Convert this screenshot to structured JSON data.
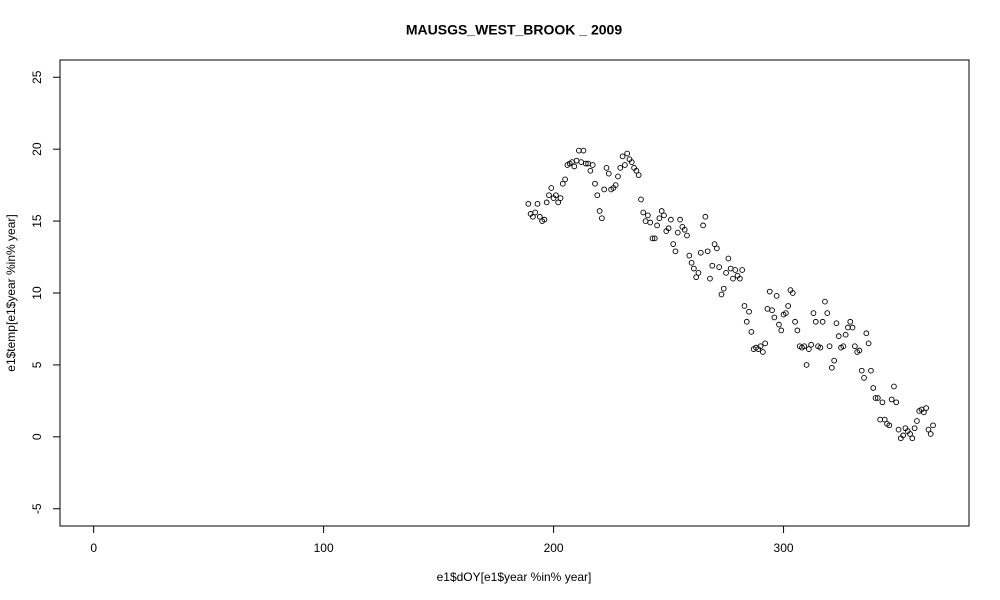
{
  "chart_data": {
    "type": "scatter",
    "title": "MAUSGS_WEST_BROOK _ 2009",
    "x_label": "e1$dOY[e1$year %in% year]",
    "y_label": "e1$temp[e1$year %in% year]",
    "xlim": [
      -14.64,
      380.64
    ],
    "ylim": [
      -6.2,
      26.2
    ],
    "xticks": [
      0,
      100,
      200,
      300
    ],
    "yticks": [
      -5,
      0,
      5,
      10,
      15,
      20,
      25
    ],
    "color": "#000000",
    "x": [
      189,
      190,
      191,
      192,
      193,
      194,
      195,
      196,
      197,
      198,
      199,
      200,
      201,
      202,
      203,
      204,
      205,
      206,
      207,
      208,
      209,
      210,
      211,
      212,
      213,
      214,
      215,
      216,
      217,
      218,
      219,
      220,
      221,
      222,
      223,
      224,
      225,
      226,
      227,
      228,
      229,
      230,
      231,
      232,
      233,
      234,
      235,
      236,
      237,
      238,
      239,
      240,
      241,
      242,
      243,
      244,
      245,
      246,
      247,
      248,
      249,
      250,
      251,
      252,
      253,
      254,
      255,
      256,
      257,
      258,
      259,
      260,
      261,
      262,
      263,
      264,
      265,
      266,
      267,
      268,
      269,
      270,
      271,
      272,
      273,
      274,
      275,
      276,
      277,
      278,
      279,
      280,
      281,
      282,
      283,
      284,
      285,
      286,
      287,
      288,
      289,
      290,
      291,
      292,
      293,
      294,
      295,
      296,
      297,
      298,
      299,
      300,
      301,
      302,
      303,
      304,
      305,
      306,
      307,
      308,
      309,
      310,
      311,
      312,
      313,
      314,
      315,
      316,
      317,
      318,
      319,
      320,
      321,
      322,
      323,
      324,
      325,
      326,
      327,
      328,
      329,
      330,
      331,
      332,
      333,
      334,
      335,
      336,
      337,
      338,
      339,
      340,
      341,
      342,
      343,
      344,
      345,
      346,
      347,
      348,
      349,
      350,
      351,
      352,
      353,
      354,
      355,
      356,
      357,
      358,
      359,
      360,
      361,
      362,
      363,
      364,
      365
    ],
    "y": [
      16.2,
      15.5,
      15.3,
      15.6,
      16.2,
      15.3,
      15.0,
      15.1,
      16.3,
      16.8,
      17.3,
      16.6,
      16.8,
      16.3,
      16.6,
      17.6,
      17.9,
      18.9,
      19.0,
      19.1,
      18.8,
      19.2,
      19.9,
      19.1,
      19.9,
      19.0,
      19.0,
      18.5,
      18.9,
      17.6,
      16.8,
      15.7,
      15.2,
      17.2,
      18.7,
      18.3,
      17.2,
      17.3,
      17.5,
      18.1,
      18.7,
      19.5,
      18.9,
      19.7,
      19.3,
      19.1,
      18.7,
      18.5,
      18.2,
      16.5,
      15.6,
      15.0,
      15.4,
      14.9,
      13.8,
      13.8,
      14.7,
      15.2,
      15.7,
      15.4,
      14.3,
      14.5,
      15.1,
      13.4,
      12.9,
      14.2,
      15.1,
      14.6,
      14.4,
      14.0,
      12.6,
      12.1,
      11.7,
      11.1,
      11.4,
      12.8,
      14.7,
      15.3,
      12.9,
      11.0,
      11.9,
      13.4,
      13.1,
      11.8,
      9.9,
      10.3,
      11.4,
      12.4,
      11.7,
      11.0,
      11.6,
      11.2,
      11.0,
      11.6,
      9.1,
      8.0,
      8.7,
      7.3,
      6.1,
      6.2,
      6.1,
      6.3,
      5.9,
      6.5,
      8.9,
      10.1,
      8.8,
      8.3,
      9.8,
      7.8,
      7.4,
      8.5,
      8.6,
      9.1,
      10.2,
      10.0,
      8.0,
      7.4,
      6.3,
      6.2,
      6.3,
      5.0,
      6.1,
      6.4,
      8.6,
      8.0,
      6.3,
      6.2,
      8.0,
      9.4,
      8.6,
      6.3,
      4.8,
      5.3,
      7.9,
      7.0,
      6.2,
      6.3,
      7.1,
      7.6,
      8.0,
      7.6,
      6.3,
      5.9,
      6.0,
      4.6,
      4.1,
      7.2,
      6.5,
      4.6,
      3.4,
      2.7,
      2.7,
      1.2,
      2.4,
      1.2,
      0.9,
      0.8,
      2.6,
      3.5,
      2.4,
      0.5,
      -0.1,
      0.1,
      0.6,
      0.4,
      0.2,
      -0.1,
      0.6,
      1.1,
      1.8,
      1.9,
      1.7,
      2.0,
      0.5,
      0.2,
      0.8
    ]
  }
}
